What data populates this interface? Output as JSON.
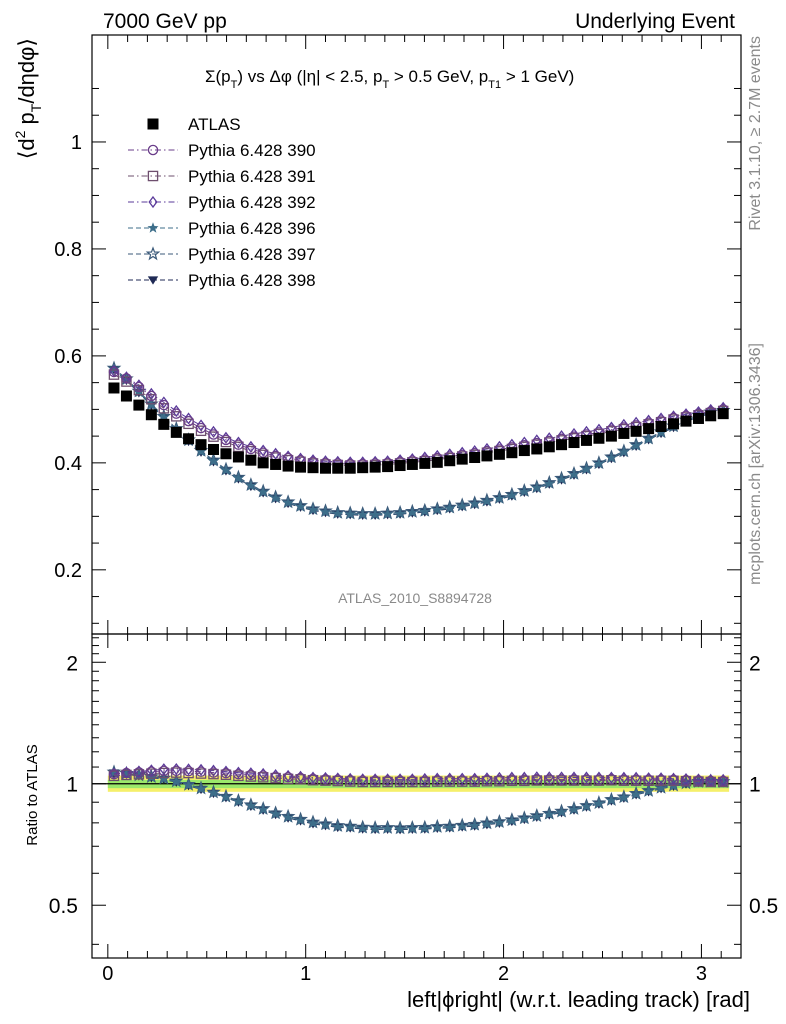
{
  "header": {
    "left": "7000 GeV pp",
    "right": "Underlying Event"
  },
  "side_labels": {
    "rivet": "Rivet 3.1.10, ≥ 2.7M events",
    "mcplots": "mcplots.cern.ch [arXiv:1306.3436]"
  },
  "chart_data": [
    {
      "type": "scatter",
      "title": "Σ(pT) vs Δφ (|η| < 2.5, pT > 0.5 GeV, pT1 > 1 GeV)",
      "title_parts": {
        "a": "Σ(p",
        "a_sub": "T",
        "b": ") vs Δφ (|η| < 2.5, p",
        "b_sub": "T",
        "c": " > 0.5 GeV, p",
        "c_sub": "T1",
        "d": " > 1 GeV)"
      },
      "ylabel": "⟨d² pT/dηdφ⟩",
      "ylabel_parts": {
        "a": "⟨d",
        "a_sup": "2",
        "b": " p",
        "b_sub": "T",
        "c": "/dηdφ⟩"
      },
      "watermark": "ATLAS_2010_S8894728",
      "xlim": [
        -0.08,
        3.2
      ],
      "ylim": [
        0.08,
        1.2
      ],
      "y_ticks": [
        0.2,
        0.4,
        0.6,
        0.8,
        1
      ],
      "y_tick_labels": [
        "0.2",
        "0.4",
        "0.6",
        "0.8",
        "1"
      ],
      "legend_position": "top-left",
      "x": [
        0.031,
        0.094,
        0.157,
        0.22,
        0.283,
        0.346,
        0.408,
        0.471,
        0.534,
        0.597,
        0.66,
        0.723,
        0.785,
        0.848,
        0.911,
        0.974,
        1.037,
        1.1,
        1.162,
        1.225,
        1.288,
        1.351,
        1.414,
        1.477,
        1.539,
        1.602,
        1.665,
        1.728,
        1.791,
        1.854,
        1.916,
        1.979,
        2.042,
        2.105,
        2.168,
        2.231,
        2.293,
        2.356,
        2.419,
        2.482,
        2.545,
        2.608,
        2.67,
        2.733,
        2.796,
        2.859,
        2.922,
        2.985,
        3.047,
        3.11
      ],
      "series": [
        {
          "name": "ATLAS",
          "marker": "filled-square",
          "color": "#000000",
          "line": "none",
          "values": [
            0.54,
            0.525,
            0.508,
            0.49,
            0.472,
            0.457,
            0.445,
            0.434,
            0.425,
            0.417,
            0.411,
            0.405,
            0.4,
            0.397,
            0.394,
            0.392,
            0.391,
            0.39,
            0.39,
            0.39,
            0.391,
            0.392,
            0.393,
            0.395,
            0.397,
            0.399,
            0.401,
            0.404,
            0.407,
            0.41,
            0.413,
            0.416,
            0.419,
            0.423,
            0.426,
            0.43,
            0.434,
            0.438,
            0.442,
            0.446,
            0.45,
            0.455,
            0.459,
            0.464,
            0.468,
            0.473,
            0.478,
            0.483,
            0.488,
            0.492
          ]
        },
        {
          "name": "Pythia 6.428 390",
          "marker": "open-circle",
          "color": "#6a3d8a",
          "line": "dashdot",
          "values": [
            0.57,
            0.558,
            0.542,
            0.525,
            0.508,
            0.492,
            0.478,
            0.465,
            0.453,
            0.443,
            0.434,
            0.426,
            0.419,
            0.413,
            0.409,
            0.405,
            0.402,
            0.4,
            0.399,
            0.398,
            0.398,
            0.399,
            0.4,
            0.402,
            0.404,
            0.406,
            0.409,
            0.412,
            0.415,
            0.418,
            0.422,
            0.425,
            0.429,
            0.433,
            0.437,
            0.441,
            0.445,
            0.449,
            0.453,
            0.457,
            0.462,
            0.466,
            0.47,
            0.475,
            0.479,
            0.484,
            0.488,
            0.492,
            0.496,
            0.5
          ]
        },
        {
          "name": "Pythia 6.428 391",
          "marker": "open-square",
          "color": "#6e4f6e",
          "line": "dashdot",
          "values": [
            0.565,
            0.552,
            0.536,
            0.519,
            0.502,
            0.487,
            0.473,
            0.46,
            0.449,
            0.439,
            0.43,
            0.422,
            0.415,
            0.41,
            0.405,
            0.402,
            0.399,
            0.397,
            0.396,
            0.395,
            0.395,
            0.396,
            0.397,
            0.399,
            0.401,
            0.403,
            0.406,
            0.409,
            0.412,
            0.415,
            0.419,
            0.422,
            0.426,
            0.43,
            0.434,
            0.438,
            0.442,
            0.446,
            0.45,
            0.454,
            0.459,
            0.463,
            0.467,
            0.472,
            0.476,
            0.481,
            0.485,
            0.489,
            0.493,
            0.497
          ]
        },
        {
          "name": "Pythia 6.428 392",
          "marker": "open-diamond",
          "color": "#5a3a9a",
          "line": "dashdot",
          "values": [
            0.572,
            0.56,
            0.545,
            0.529,
            0.513,
            0.497,
            0.483,
            0.47,
            0.458,
            0.447,
            0.438,
            0.43,
            0.423,
            0.417,
            0.412,
            0.408,
            0.405,
            0.403,
            0.402,
            0.401,
            0.401,
            0.402,
            0.403,
            0.405,
            0.407,
            0.41,
            0.413,
            0.416,
            0.419,
            0.422,
            0.426,
            0.43,
            0.434,
            0.438,
            0.442,
            0.446,
            0.45,
            0.454,
            0.458,
            0.462,
            0.466,
            0.471,
            0.475,
            0.479,
            0.483,
            0.487,
            0.491,
            0.495,
            0.499,
            0.503
          ]
        },
        {
          "name": "Pythia 6.428 396",
          "marker": "filled-star",
          "color": "#3d6e8a",
          "line": "dashed",
          "values": [
            0.575,
            0.555,
            0.532,
            0.508,
            0.485,
            0.462,
            0.441,
            0.421,
            0.403,
            0.386,
            0.371,
            0.357,
            0.345,
            0.334,
            0.325,
            0.318,
            0.312,
            0.308,
            0.305,
            0.304,
            0.303,
            0.303,
            0.304,
            0.305,
            0.307,
            0.309,
            0.312,
            0.315,
            0.319,
            0.323,
            0.328,
            0.333,
            0.339,
            0.346,
            0.353,
            0.361,
            0.369,
            0.378,
            0.388,
            0.398,
            0.409,
            0.42,
            0.432,
            0.444,
            0.456,
            0.467,
            0.478,
            0.487,
            0.493,
            0.496
          ]
        },
        {
          "name": "Pythia 6.428 397",
          "marker": "open-star",
          "color": "#3b5a7a",
          "line": "dashed",
          "values": [
            0.577,
            0.557,
            0.534,
            0.51,
            0.487,
            0.464,
            0.443,
            0.423,
            0.405,
            0.388,
            0.373,
            0.359,
            0.347,
            0.336,
            0.327,
            0.32,
            0.314,
            0.31,
            0.307,
            0.306,
            0.305,
            0.305,
            0.306,
            0.307,
            0.309,
            0.311,
            0.314,
            0.317,
            0.321,
            0.325,
            0.33,
            0.335,
            0.341,
            0.348,
            0.355,
            0.363,
            0.371,
            0.38,
            0.39,
            0.4,
            0.411,
            0.422,
            0.434,
            0.446,
            0.458,
            0.469,
            0.48,
            0.489,
            0.495,
            0.498
          ]
        },
        {
          "name": "Pythia 6.428 398",
          "marker": "filled-triangle-down",
          "color": "#1f2a55",
          "line": "dashed",
          "values": [
            0.574,
            0.554,
            0.531,
            0.507,
            0.484,
            0.461,
            0.44,
            0.42,
            0.402,
            0.385,
            0.37,
            0.356,
            0.344,
            0.333,
            0.324,
            0.317,
            0.311,
            0.307,
            0.304,
            0.303,
            0.302,
            0.302,
            0.303,
            0.304,
            0.306,
            0.308,
            0.311,
            0.314,
            0.318,
            0.322,
            0.327,
            0.332,
            0.338,
            0.345,
            0.352,
            0.36,
            0.368,
            0.377,
            0.387,
            0.397,
            0.408,
            0.419,
            0.431,
            0.443,
            0.455,
            0.466,
            0.477,
            0.486,
            0.492,
            0.495
          ]
        }
      ]
    },
    {
      "type": "scatter",
      "ylabel": "Ratio to ATLAS",
      "xlabel": "left|ϕright| (w.r.t. leading track) [rad]",
      "xlim": [
        -0.08,
        3.2
      ],
      "ylim": [
        0.37,
        2.35
      ],
      "y_ticks": [
        0.5,
        1,
        2
      ],
      "y_tick_labels": [
        "0.5",
        "1",
        "2"
      ],
      "x_ticks": [
        0,
        1,
        2,
        3
      ],
      "x_tick_labels": [
        "0",
        "1",
        "2",
        "3"
      ],
      "uncertainty_band": {
        "outer": [
          0.955,
          1.048
        ],
        "inner": [
          0.975,
          1.022
        ],
        "outer_color": "#f5ef6a",
        "inner_color": "#9be86a"
      },
      "reference_line": 1,
      "ratio_series_of": "Pythia 6.428 series divided by ATLAS"
    }
  ]
}
